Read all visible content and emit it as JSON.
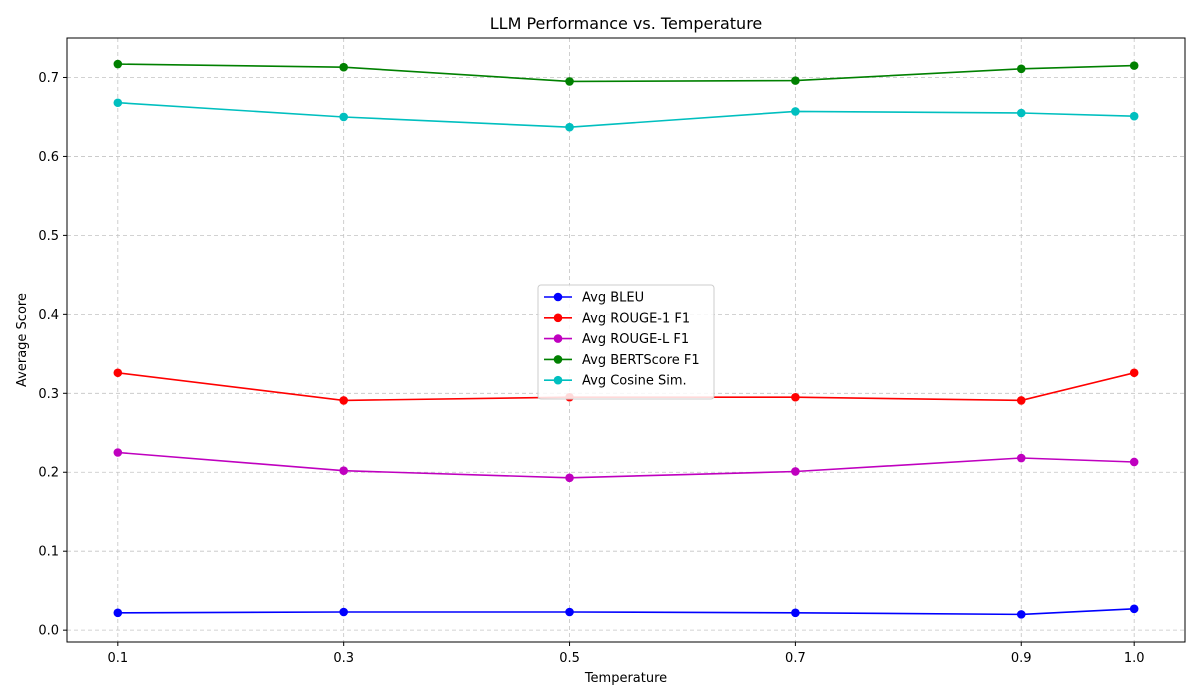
{
  "chart_data": {
    "type": "line",
    "title": "LLM Performance vs. Temperature",
    "xlabel": "Temperature",
    "ylabel": "Average Score",
    "x": [
      0.1,
      0.3,
      0.5,
      0.7,
      0.9,
      1.0
    ],
    "x_tick_labels": [
      "0.1",
      "0.3",
      "0.5",
      "0.7",
      "0.9",
      "1.0"
    ],
    "y_ticks": [
      0.0,
      0.1,
      0.2,
      0.3,
      0.4,
      0.5,
      0.6,
      0.7
    ],
    "y_tick_labels": [
      "0.0",
      "0.1",
      "0.2",
      "0.3",
      "0.4",
      "0.5",
      "0.6",
      "0.7"
    ],
    "xlim": [
      0.055,
      1.045
    ],
    "ylim": [
      -0.015,
      0.75
    ],
    "grid": true,
    "legend_position": "center",
    "series": [
      {
        "name": "Avg BLEU",
        "color": "#0000ff",
        "values": [
          0.022,
          0.023,
          0.023,
          0.022,
          0.02,
          0.027
        ]
      },
      {
        "name": "Avg ROUGE-1 F1",
        "color": "#ff0000",
        "values": [
          0.326,
          0.291,
          0.295,
          0.295,
          0.291,
          0.326
        ]
      },
      {
        "name": "Avg ROUGE-L F1",
        "color": "#bf00bf",
        "values": [
          0.225,
          0.202,
          0.193,
          0.201,
          0.218,
          0.213
        ]
      },
      {
        "name": "Avg BERTScore F1",
        "color": "#008000",
        "values": [
          0.717,
          0.713,
          0.695,
          0.696,
          0.711,
          0.715
        ]
      },
      {
        "name": "Avg Cosine Sim.",
        "color": "#00bfbf",
        "values": [
          0.668,
          0.65,
          0.637,
          0.657,
          0.655,
          0.651
        ]
      }
    ]
  }
}
